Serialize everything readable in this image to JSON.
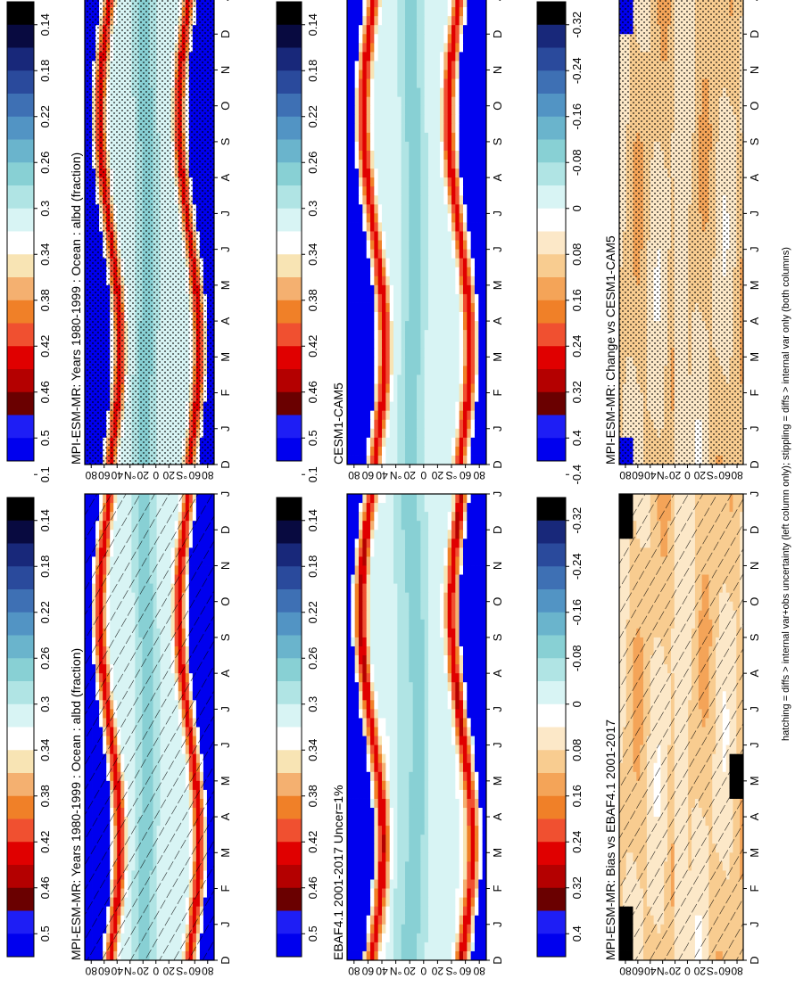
{
  "footnote": "hatching = diffs > internal var+obs uncertainty (left column only); stippling = diffs > internal var only (both columns)",
  "abs_palette": [
    "#0000ee",
    "#1e1ef5",
    "#6a0000",
    "#b40000",
    "#e00000",
    "#f05030",
    "#f08028",
    "#f4b070",
    "#f8e4b4",
    "#ffffff",
    "#d8f4f4",
    "#b0e4e4",
    "#88d0d4",
    "#6ab4cc",
    "#5294c4",
    "#3e70b4",
    "#2a4a9c",
    "#18287a",
    "#080a40",
    "#000000"
  ],
  "diff_palette": [
    "#0000ee",
    "#1e1ef5",
    "#6a0000",
    "#b40000",
    "#e00000",
    "#f05030",
    "#f08028",
    "#f4a458",
    "#f8cc90",
    "#fce8c8",
    "#ffffff",
    "#d8f4f4",
    "#b0e4e4",
    "#88d0d4",
    "#6ab4cc",
    "#5294c4",
    "#3e70b4",
    "#2a4a9c",
    "#18287a",
    "#000000"
  ],
  "chart_data": [
    {
      "type": "heatmap",
      "title": "MPI-ESM-MR: Years 1980-1999 : Ocean : albd (fraction)",
      "x_ticks": [
        "D",
        "J",
        "F",
        "M",
        "A",
        "M",
        "J",
        "J",
        "A",
        "S",
        "O",
        "N",
        "D",
        "J"
      ],
      "y_ticks": [
        "80",
        "60",
        "40",
        "°N",
        "20",
        "0",
        "20",
        "°S",
        "60",
        "80"
      ],
      "legend_ticks": [
        "0.5",
        "0.46",
        "0.42",
        "0.38",
        "0.34",
        "0.3",
        "0.26",
        "0.22",
        "0.18",
        "0.14",
        "0.1"
      ],
      "ylim": [
        -90,
        90
      ],
      "overlay": "hatching"
    },
    {
      "type": "heatmap",
      "title": "MPI-ESM-MR: Years 1980-1999 : Ocean : albd (fraction)",
      "x_ticks": [
        "D",
        "J",
        "F",
        "M",
        "A",
        "M",
        "J",
        "J",
        "A",
        "S",
        "O",
        "N",
        "D",
        "J"
      ],
      "y_ticks": [
        "80",
        "60",
        "40",
        "°N",
        "20",
        "0",
        "20",
        "°S",
        "60",
        "80"
      ],
      "legend_ticks": [
        "0.5",
        "0.46",
        "0.42",
        "0.38",
        "0.34",
        "0.3",
        "0.26",
        "0.22",
        "0.18",
        "0.14",
        "0.1"
      ],
      "ylim": [
        -90,
        90
      ],
      "overlay": "stippling"
    },
    {
      "type": "heatmap",
      "title": "EBAF4.1 2001-2017 Uncer=1%",
      "x_ticks": [
        "D",
        "J",
        "F",
        "M",
        "A",
        "M",
        "J",
        "J",
        "A",
        "S",
        "O",
        "N",
        "D",
        "J"
      ],
      "y_ticks": [
        "80",
        "60",
        "40",
        "°N",
        "20",
        "0",
        "20",
        "°S",
        "60",
        "80"
      ],
      "legend_ticks": [
        "0.5",
        "0.46",
        "0.42",
        "0.38",
        "0.34",
        "0.3",
        "0.26",
        "0.22",
        "0.18",
        "0.14",
        "0.1"
      ],
      "ylim": [
        -90,
        90
      ],
      "overlay": "none"
    },
    {
      "type": "heatmap",
      "title": "CESM1-CAM5",
      "x_ticks": [
        "D",
        "J",
        "F",
        "M",
        "A",
        "M",
        "J",
        "J",
        "A",
        "S",
        "O",
        "N",
        "D",
        "J"
      ],
      "y_ticks": [
        "80",
        "60",
        "40",
        "°N",
        "20",
        "0",
        "20",
        "°S",
        "60",
        "80"
      ],
      "legend_ticks": [
        "0.5",
        "0.46",
        "0.42",
        "0.38",
        "0.34",
        "0.3",
        "0.26",
        "0.22",
        "0.18",
        "0.14",
        "0.1"
      ],
      "ylim": [
        -90,
        90
      ],
      "overlay": "none"
    },
    {
      "type": "heatmap",
      "title": "MPI-ESM-MR: Bias vs EBAF4.1 2001-2017",
      "x_ticks": [
        "D",
        "J",
        "F",
        "M",
        "A",
        "M",
        "J",
        "J",
        "A",
        "S",
        "O",
        "N",
        "D",
        "J"
      ],
      "y_ticks": [
        "80",
        "60",
        "40",
        "°N",
        "20",
        "0",
        "20",
        "°S",
        "60",
        "80"
      ],
      "legend_ticks": [
        "0.4",
        "0.32",
        "0.24",
        "0.16",
        "0.08",
        "0",
        "-0.08",
        "-0.16",
        "-0.24",
        "-0.32",
        "-0.4"
      ],
      "ylim": [
        -90,
        90
      ],
      "overlay": "hatching"
    },
    {
      "type": "heatmap",
      "title": "MPI-ESM-MR: Change vs CESM1-CAM5",
      "x_ticks": [
        "D",
        "J",
        "F",
        "M",
        "A",
        "M",
        "J",
        "J",
        "A",
        "S",
        "O",
        "N",
        "D",
        "J"
      ],
      "y_ticks": [
        "80",
        "60",
        "40",
        "°N",
        "20",
        "0",
        "20",
        "°S",
        "60",
        "80"
      ],
      "legend_ticks": [
        "0.4",
        "0.32",
        "0.24",
        "0.16",
        "0.08",
        "0",
        "-0.08",
        "-0.16",
        "-0.24",
        "-0.32",
        "-0.4"
      ],
      "ylim": [
        -90,
        90
      ],
      "overlay": "stippling"
    }
  ]
}
